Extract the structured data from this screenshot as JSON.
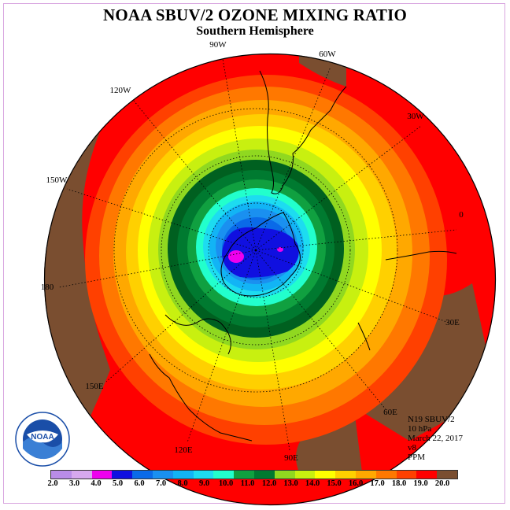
{
  "header": {
    "title": "NOAA SBUV/2 OZONE MIXING RATIO",
    "subtitle": "Southern Hemisphere"
  },
  "longitude_labels": [
    "90W",
    "60W",
    "30W",
    "0",
    "30E",
    "60E",
    "90E",
    "120E",
    "150E",
    "180",
    "150W",
    "120W"
  ],
  "info": {
    "satellite": "N19 SBUV/2",
    "level": "10 hPa",
    "date": "March 22, 2017",
    "version": "v8",
    "units": "PPM"
  },
  "logo": {
    "text": "NOAA",
    "ring_text": "NATIONAL OCEANIC AND ATMOSPHERIC ADMINISTRATION · U.S. DEPARTMENT OF COMMERCE"
  },
  "colorbar": {
    "labels": [
      "2.0",
      "3.0",
      "4.0",
      "5.0",
      "6.0",
      "7.0",
      "8.0",
      "9.0",
      "10.0",
      "11.0",
      "12.0",
      "13.0",
      "14.0",
      "15.0",
      "16.0",
      "17.0",
      "18.0",
      "19.0",
      "20.0"
    ],
    "colors": [
      "#b98ce8",
      "#d6a8ee",
      "#ee00ee",
      "#1010e0",
      "#0a6ae8",
      "#1a90f0",
      "#12b4f5",
      "#1ddcf0",
      "#22ffcc",
      "#10a040",
      "#007a30",
      "#006020",
      "#90d820",
      "#c8f010",
      "#ffff00",
      "#ffd000",
      "#ffa800",
      "#ff7800",
      "#ff4000",
      "#ff0000",
      "#7a4e30"
    ]
  },
  "colors": {
    "land_mask": "#7a4e30",
    "max_band": "#ff0000",
    "min_core": "#ee00ee"
  }
}
